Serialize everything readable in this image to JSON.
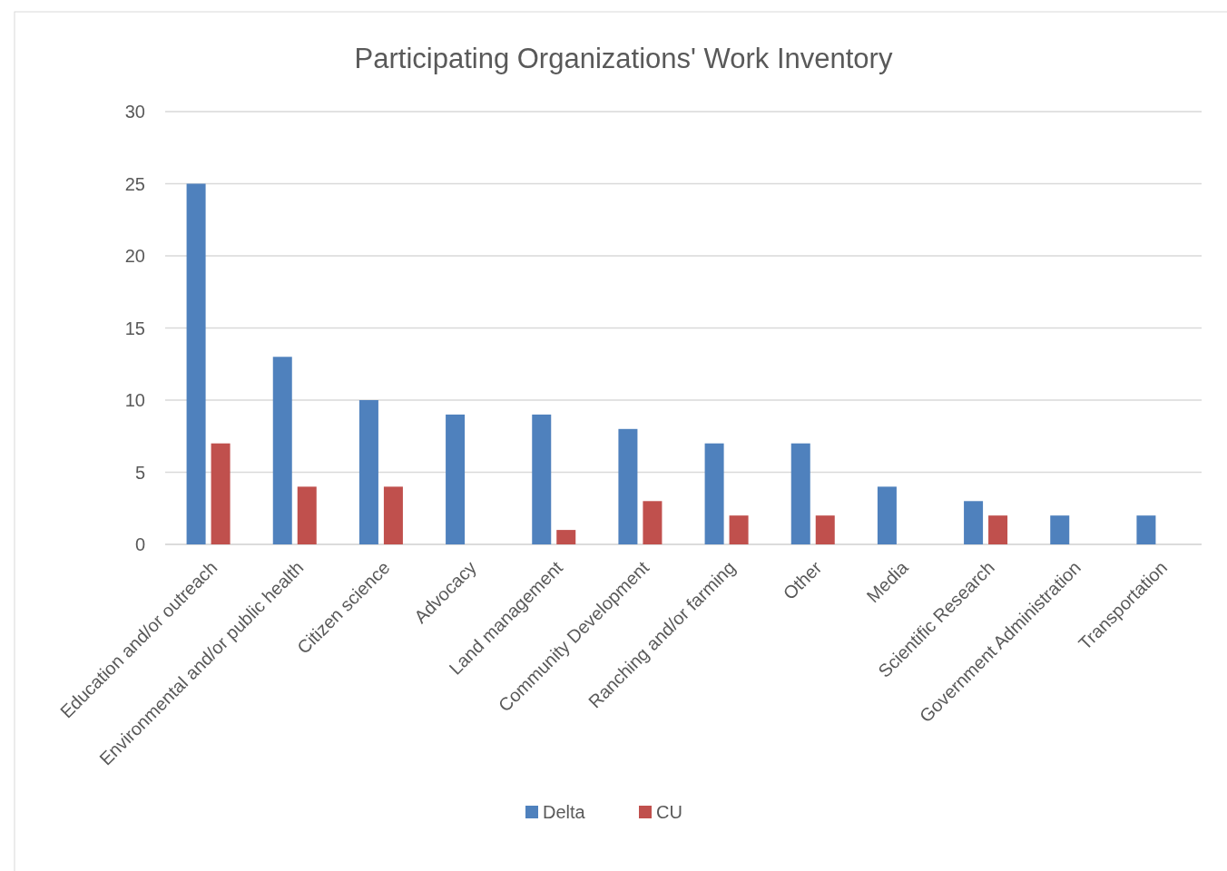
{
  "chart_data": {
    "type": "bar",
    "title": "Participating Organizations' Work Inventory",
    "categories": [
      "Education and/or outreach",
      "Environmental and/or public health",
      "Citizen science",
      "Advocacy",
      "Land management",
      "Community Development",
      "Ranching and/or farming",
      "Other",
      "Media",
      "Scientific Research",
      "Government Administration",
      "Transportation"
    ],
    "series": [
      {
        "name": "Delta",
        "color": "#4f81bd",
        "values": [
          25,
          13,
          10,
          9,
          9,
          8,
          7,
          7,
          4,
          3,
          2,
          2
        ]
      },
      {
        "name": "CU",
        "color": "#c0504d",
        "values": [
          7,
          4,
          4,
          null,
          1,
          3,
          2,
          2,
          null,
          2,
          null,
          null
        ]
      }
    ],
    "ylim": [
      0,
      30
    ],
    "yticks": [
      0,
      5,
      10,
      15,
      20,
      25,
      30
    ],
    "grid": "y",
    "legend": "bottom"
  }
}
